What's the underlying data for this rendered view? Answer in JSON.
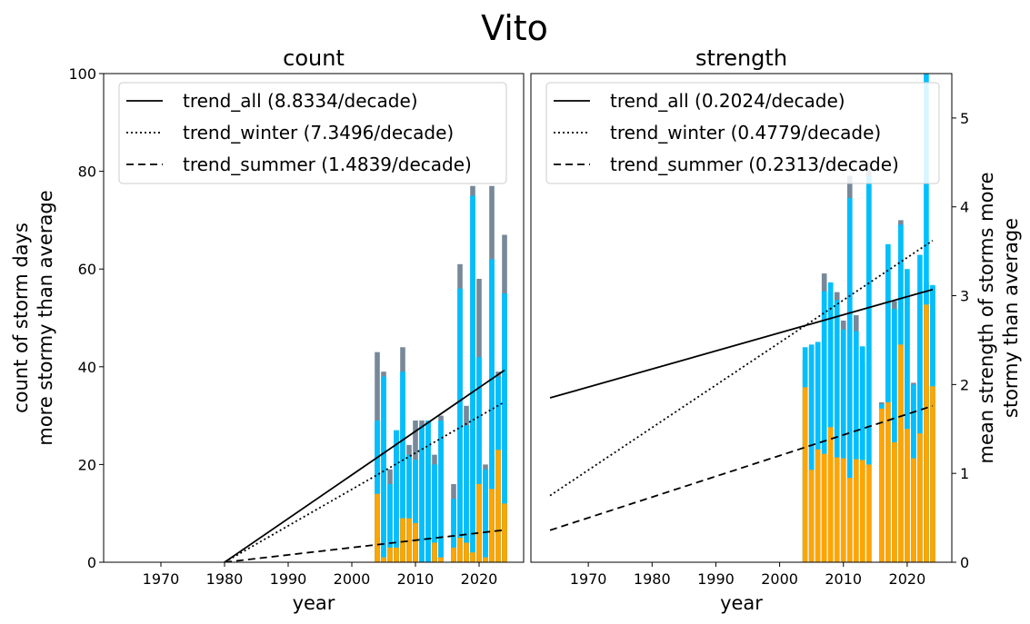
{
  "figure": {
    "suptitle": "Vito"
  },
  "colors": {
    "all": "#778899",
    "winter": "#00bfff",
    "summer": "#ffa500",
    "trend": "#000000"
  },
  "chart_data": [
    {
      "type": "bar",
      "title": "count",
      "xlabel": "year",
      "ylabel_lines": [
        "count of storm days",
        "more stormy than average"
      ],
      "xlim": [
        1961,
        2027
      ],
      "ylim": [
        0,
        100
      ],
      "xticks": [
        1970,
        1980,
        1990,
        2000,
        2010,
        2020
      ],
      "yticks": [
        0,
        20,
        40,
        60,
        80,
        100
      ],
      "x": [
        2004,
        2005,
        2006,
        2007,
        2008,
        2009,
        2010,
        2011,
        2012,
        2013,
        2014,
        2015,
        2016,
        2017,
        2018,
        2019,
        2020,
        2021,
        2022,
        2023,
        2024
      ],
      "series": [
        {
          "key": "all",
          "values": [
            43,
            39,
            19,
            27,
            44,
            24,
            29,
            29,
            29,
            22,
            30,
            0,
            16,
            61,
            32,
            77,
            58,
            20,
            77,
            39,
            67
          ]
        },
        {
          "key": "winter",
          "values": [
            29,
            38,
            16,
            27,
            39,
            22,
            21,
            28,
            29,
            20,
            29,
            0,
            13,
            56,
            28,
            75,
            42,
            19,
            62,
            38,
            55
          ]
        },
        {
          "key": "summer",
          "values": [
            14,
            1,
            3,
            3,
            9,
            9,
            8,
            0,
            0,
            4,
            1,
            0,
            3,
            5,
            4,
            2,
            16,
            1,
            15,
            23,
            12
          ]
        }
      ],
      "trends": [
        {
          "key": "trend_all",
          "label": "trend_all (8.8334/decade)",
          "dash": "solid",
          "x": [
            1980,
            2024
          ],
          "y": [
            0,
            39.3
          ]
        },
        {
          "key": "trend_winter",
          "label": "trend_winter (7.3496/decade)",
          "dash": "dotted",
          "x": [
            1980,
            2024
          ],
          "y": [
            0,
            32.8
          ]
        },
        {
          "key": "trend_summer",
          "label": "trend_summer (1.4839/decade)",
          "dash": "dashed",
          "x": [
            1980,
            2024
          ],
          "y": [
            0,
            6.6
          ]
        }
      ],
      "legend": "upper left",
      "yaxis_side": "left"
    },
    {
      "type": "bar",
      "title": "strength",
      "xlabel": "year",
      "ylabel_lines": [
        "mean strength of storms more",
        "stormy than average"
      ],
      "xlim": [
        1961,
        2027
      ],
      "ylim": [
        0,
        5.5
      ],
      "xticks": [
        1970,
        1980,
        1990,
        2000,
        2010,
        2020
      ],
      "yticks": [
        0,
        1,
        2,
        3,
        4,
        5
      ],
      "x": [
        2004,
        2005,
        2006,
        2007,
        2008,
        2009,
        2010,
        2011,
        2012,
        2013,
        2014,
        2015,
        2016,
        2017,
        2018,
        2019,
        2020,
        2021,
        2022,
        2023,
        2024
      ],
      "series": [
        {
          "key": "all",
          "values": [
            2.28,
            2.42,
            2.45,
            3.25,
            2.95,
            3.04,
            2.72,
            4.35,
            2.78,
            2.25,
            4.5,
            0,
            1.8,
            3.28,
            2.94,
            3.85,
            3.05,
            2.02,
            3.0,
            3.15,
            3.1
          ]
        },
        {
          "key": "winter",
          "values": [
            2.42,
            2.45,
            2.48,
            3.05,
            3.15,
            2.95,
            2.62,
            4.1,
            2.6,
            2.43,
            4.35,
            0,
            1.78,
            3.58,
            2.85,
            3.8,
            3.3,
            2.0,
            3.46,
            5.5,
            3.12
          ]
        },
        {
          "key": "summer",
          "values": [
            1.97,
            1.04,
            1.27,
            1.22,
            1.52,
            1.18,
            1.17,
            0.95,
            1.16,
            1.15,
            1.1,
            0,
            1.73,
            1.8,
            1.35,
            2.45,
            1.5,
            1.17,
            1.45,
            2.9,
            1.98
          ]
        }
      ],
      "trends": [
        {
          "key": "trend_all",
          "label": "trend_all (0.2024/decade)",
          "dash": "solid",
          "x": [
            1964,
            2024
          ],
          "y": [
            1.85,
            3.07
          ]
        },
        {
          "key": "trend_winter",
          "label": "trend_winter (0.4779/decade)",
          "dash": "dotted",
          "x": [
            1964,
            2024
          ],
          "y": [
            0.75,
            3.62
          ]
        },
        {
          "key": "trend_summer",
          "label": "trend_summer (0.2313/decade)",
          "dash": "dashed",
          "x": [
            1964,
            2024
          ],
          "y": [
            0.36,
            1.76
          ]
        }
      ],
      "legend": "upper left",
      "yaxis_side": "right"
    }
  ]
}
